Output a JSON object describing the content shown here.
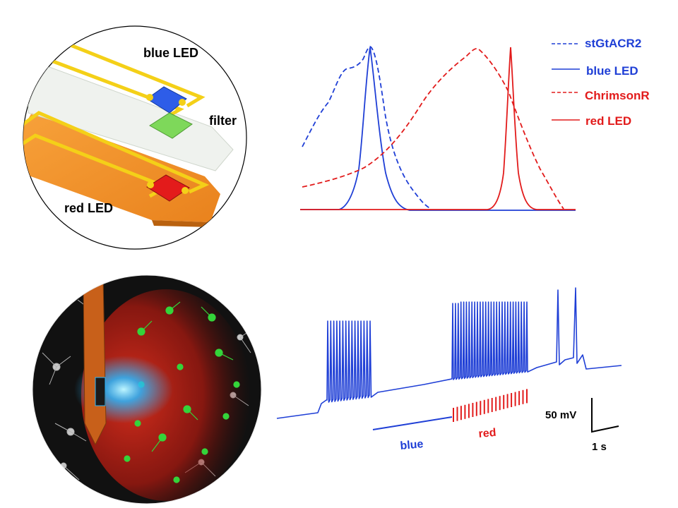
{
  "probe_panel": {
    "blue_led_label": "blue LED",
    "filter_label": "filter",
    "red_led_label": "red LED"
  },
  "spectra_panel": {
    "legend": [
      {
        "label": "stGtACR2",
        "color": "#1f3fd6",
        "style": "dashed"
      },
      {
        "label": "blue LED",
        "color": "#1f3fd6",
        "style": "solid"
      },
      {
        "label": "ChrimsonR",
        "color": "#e21b1b",
        "style": "dashed"
      },
      {
        "label": "red LED",
        "color": "#e21b1b",
        "style": "solid"
      }
    ],
    "colors": {
      "blue": "#1f3fd6",
      "red": "#e21b1b"
    }
  },
  "recording_panel": {
    "blue_label": "blue",
    "red_label": "red",
    "scale_voltage": "50 mV",
    "scale_time": "1 s",
    "colors": {
      "trace": "#1f3fd6",
      "blue_stim": "#1f3fd6",
      "red_stim": "#e21b1b"
    }
  },
  "neuron_image": {
    "colors": {
      "probe": "#c8601a",
      "light": "#27b7ff",
      "green_cells": "#34d43a",
      "red_cells": "#d61a10",
      "background": "#111111"
    }
  }
}
